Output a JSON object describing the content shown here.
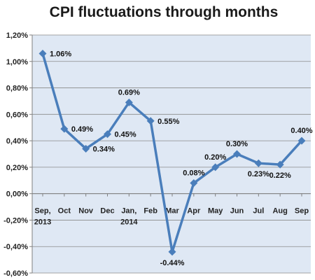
{
  "chart_data": {
    "type": "line",
    "title": "CPI fluctuations through months",
    "categories": [
      [
        "Sep,",
        "2013"
      ],
      [
        "Oct"
      ],
      [
        "Nov"
      ],
      [
        "Dec"
      ],
      [
        "Jan,",
        "2014"
      ],
      [
        "Feb"
      ],
      [
        "Mar"
      ],
      [
        "Apr"
      ],
      [
        "May"
      ],
      [
        "Jun"
      ],
      [
        "Jul"
      ],
      [
        "Aug"
      ],
      [
        "Sep"
      ]
    ],
    "values": [
      1.06,
      0.49,
      0.34,
      0.45,
      0.69,
      0.55,
      -0.44,
      0.08,
      0.2,
      0.3,
      0.23,
      0.22,
      0.4
    ],
    "data_labels": [
      "1.06%",
      "0.49%",
      "0.34%",
      "0.45%",
      "0.69%",
      "0.55%",
      "-0.44%",
      "0.08%",
      "0.20%",
      "0.30%",
      "0.23%",
      "0.22%",
      "0.40%"
    ],
    "label_positions": [
      "right",
      "right",
      "right",
      "right",
      "above",
      "right",
      "below",
      "above",
      "above",
      "above",
      "below",
      "below",
      "above"
    ],
    "y_tick_labels": [
      "-0,60%",
      "-0,40%",
      "-0,20%",
      "0,00%",
      "0,20%",
      "0,40%",
      "0,60%",
      "0,80%",
      "1,00%",
      "1,20%"
    ],
    "y_ticks": [
      -0.6,
      -0.4,
      -0.2,
      0.0,
      0.2,
      0.4,
      0.6,
      0.8,
      1.0,
      1.2
    ],
    "ylim": [
      -0.6,
      1.2
    ],
    "xlabel": "",
    "ylabel": "",
    "grid": true,
    "legend": "none",
    "colors": {
      "line": "#4a7ebb",
      "marker": "#4a7ebb",
      "plot_background": "#dfe8f4",
      "gridline": "#8a8a8a",
      "axis": "#7f7f7f"
    }
  }
}
